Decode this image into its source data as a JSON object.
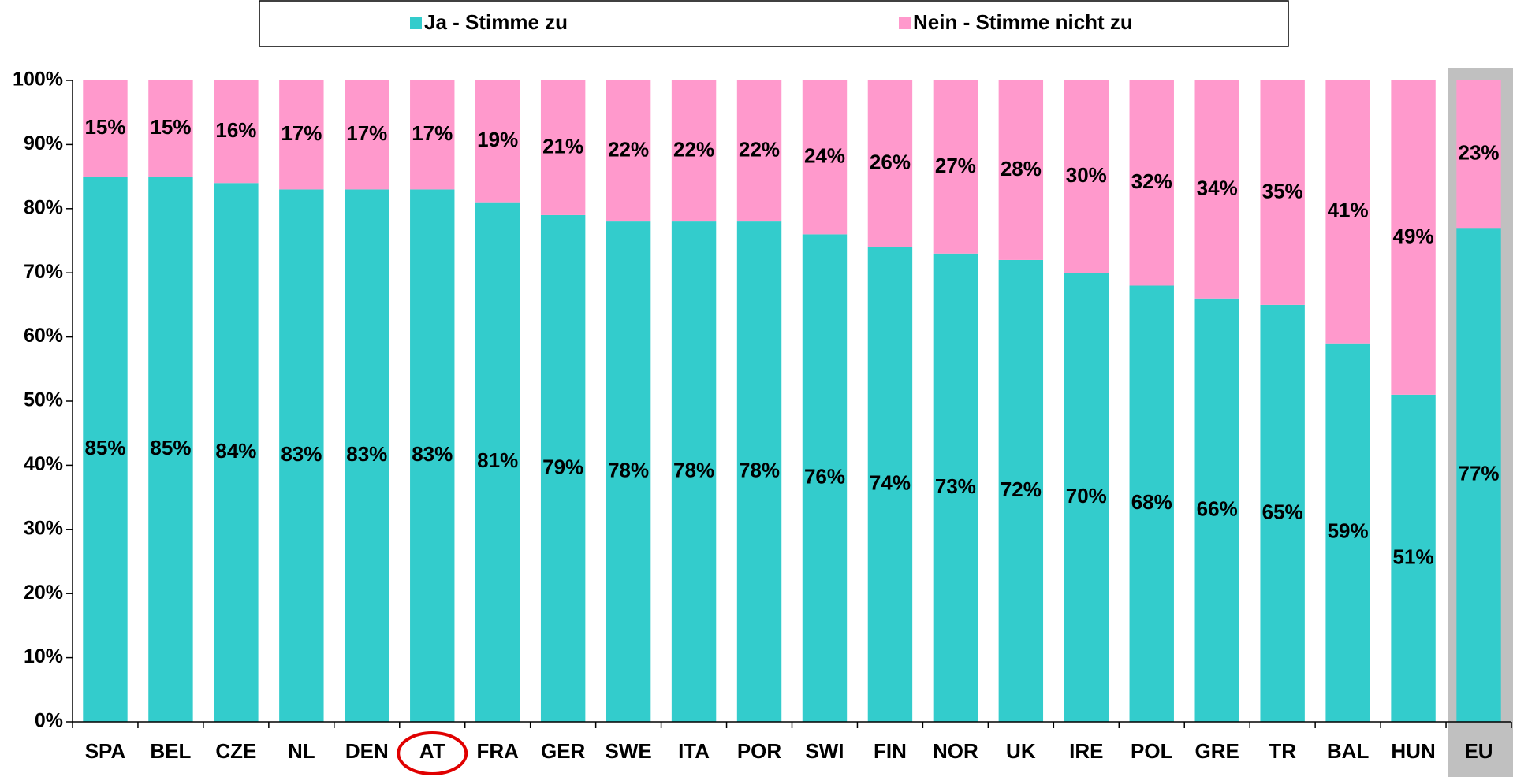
{
  "chart_data": {
    "type": "stacked_bar",
    "categories": [
      "SPA",
      "BEL",
      "CZE",
      "NL",
      "DEN",
      "AT",
      "FRA",
      "GER",
      "SWE",
      "ITA",
      "POR",
      "SWI",
      "FIN",
      "NOR",
      "UK",
      "IRE",
      "POL",
      "GRE",
      "TR",
      "BAL",
      "HUN",
      "EU"
    ],
    "series": [
      {
        "name": "Ja - Stimme zu",
        "color": "#33cccc",
        "values": [
          85,
          85,
          84,
          83,
          83,
          83,
          81,
          79,
          78,
          78,
          78,
          76,
          74,
          73,
          72,
          70,
          68,
          66,
          65,
          59,
          51,
          77
        ],
        "value_labels": [
          "85%",
          "85%",
          "84%",
          "83%",
          "83%",
          "83%",
          "81%",
          "79%",
          "78%",
          "78%",
          "78%",
          "76%",
          "74%",
          "73%",
          "72%",
          "70%",
          "68%",
          "66%",
          "65%",
          "59%",
          "51%",
          "77%"
        ]
      },
      {
        "name": "Nein - Stimme nicht zu",
        "color": "#ff99cc",
        "values": [
          15,
          15,
          16,
          17,
          17,
          17,
          19,
          21,
          22,
          22,
          22,
          24,
          26,
          27,
          28,
          30,
          32,
          34,
          35,
          41,
          49,
          23
        ],
        "value_labels": [
          "15%",
          "15%",
          "16%",
          "17%",
          "17%",
          "17%",
          "19%",
          "21%",
          "22%",
          "22%",
          "22%",
          "24%",
          "26%",
          "27%",
          "28%",
          "30%",
          "32%",
          "34%",
          "35%",
          "41%",
          "49%",
          "23%"
        ]
      }
    ],
    "ylim": [
      0,
      100
    ],
    "yticks": [
      {
        "value": 0,
        "label": "0%"
      },
      {
        "value": 10,
        "label": "10%"
      },
      {
        "value": 20,
        "label": "20%"
      },
      {
        "value": 30,
        "label": "30%"
      },
      {
        "value": 40,
        "label": "40%"
      },
      {
        "value": 50,
        "label": "50%"
      },
      {
        "value": 60,
        "label": "60%"
      },
      {
        "value": 70,
        "label": "70%"
      },
      {
        "value": 80,
        "label": "80%"
      },
      {
        "value": 90,
        "label": "90%"
      },
      {
        "value": 100,
        "label": "100%"
      }
    ],
    "legend": "top"
  }
}
